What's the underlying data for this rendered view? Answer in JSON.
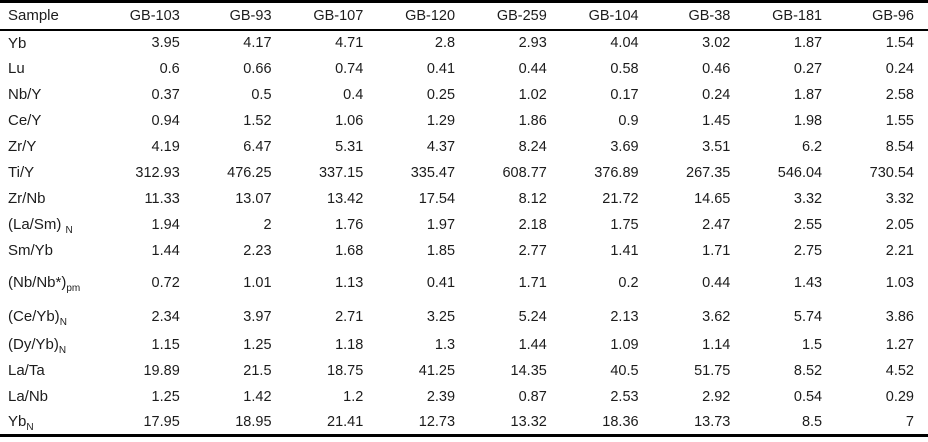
{
  "styles": {
    "text_color": "#1c1c1c",
    "rule_color": "#000000",
    "background": "#ffffff"
  },
  "chart_data": {
    "type": "table",
    "title": "",
    "header": {
      "sample_label": "Sample",
      "columns": [
        "GB-103",
        "GB-93",
        "GB-107",
        "GB-120",
        "GB-259",
        "GB-104",
        "GB-38",
        "GB-181",
        "GB-96"
      ]
    },
    "rows": [
      {
        "label": "Yb",
        "sub": "",
        "values": [
          "3.95",
          "4.17",
          "4.71",
          "2.8",
          "2.93",
          "4.04",
          "3.02",
          "1.87",
          "1.54"
        ]
      },
      {
        "label": "Lu",
        "sub": "",
        "values": [
          "0.6",
          "0.66",
          "0.74",
          "0.41",
          "0.44",
          "0.58",
          "0.46",
          "0.27",
          "0.24"
        ]
      },
      {
        "label": "Nb/Y",
        "sub": "",
        "values": [
          "0.37",
          "0.5",
          "0.4",
          "0.25",
          "1.02",
          "0.17",
          "0.24",
          "1.87",
          "2.58"
        ]
      },
      {
        "label": "Ce/Y",
        "sub": "",
        "values": [
          "0.94",
          "1.52",
          "1.06",
          "1.29",
          "1.86",
          "0.9",
          "1.45",
          "1.98",
          "1.55"
        ]
      },
      {
        "label": "Zr/Y",
        "sub": "",
        "values": [
          "4.19",
          "6.47",
          "5.31",
          "4.37",
          "8.24",
          "3.69",
          "3.51",
          "6.2",
          "8.54"
        ]
      },
      {
        "label": "Ti/Y",
        "sub": "",
        "values": [
          "312.93",
          "476.25",
          "337.15",
          "335.47",
          "608.77",
          "376.89",
          "267.35",
          "546.04",
          "730.54"
        ]
      },
      {
        "label": "Zr/Nb",
        "sub": "",
        "values": [
          "11.33",
          "13.07",
          "13.42",
          "17.54",
          "8.12",
          "21.72",
          "14.65",
          "3.32",
          "3.32"
        ]
      },
      {
        "label": "(La/Sm) ",
        "sub": "N",
        "values": [
          "1.94",
          "2",
          "1.76",
          "1.97",
          "2.18",
          "1.75",
          "2.47",
          "2.55",
          "2.05"
        ]
      },
      {
        "label": "Sm/Yb",
        "sub": "",
        "values": [
          "1.44",
          "2.23",
          "1.68",
          "1.85",
          "2.77",
          "1.41",
          "1.71",
          "2.75",
          "2.21"
        ]
      },
      {
        "label": "(Nb/Nb*)",
        "sub": "pm",
        "values": [
          "0.72",
          "1.01",
          "1.13",
          "0.41",
          "1.71",
          "0.2",
          "0.44",
          "1.43",
          "1.03"
        ]
      },
      {
        "label": "(Ce/Yb)",
        "sub": "N",
        "values": [
          "2.34",
          "3.97",
          "2.71",
          "3.25",
          "5.24",
          "2.13",
          "3.62",
          "5.74",
          "3.86"
        ]
      },
      {
        "label": "(Dy/Yb)",
        "sub": "N",
        "values": [
          "1.15",
          "1.25",
          "1.18",
          "1.3",
          "1.44",
          "1.09",
          "1.14",
          "1.5",
          "1.27"
        ]
      },
      {
        "label": "La/Ta",
        "sub": "",
        "values": [
          "19.89",
          "21.5",
          "18.75",
          "41.25",
          "14.35",
          "40.5",
          "51.75",
          "8.52",
          "4.52"
        ]
      },
      {
        "label": "La/Nb",
        "sub": "",
        "values": [
          "1.25",
          "1.42",
          "1.2",
          "2.39",
          "0.87",
          "2.53",
          "2.92",
          "0.54",
          "0.29"
        ]
      },
      {
        "label": "Yb",
        "sub": "N",
        "values": [
          "17.95",
          "18.95",
          "21.41",
          "12.73",
          "13.32",
          "18.36",
          "13.73",
          "8.5",
          "7"
        ]
      }
    ]
  }
}
